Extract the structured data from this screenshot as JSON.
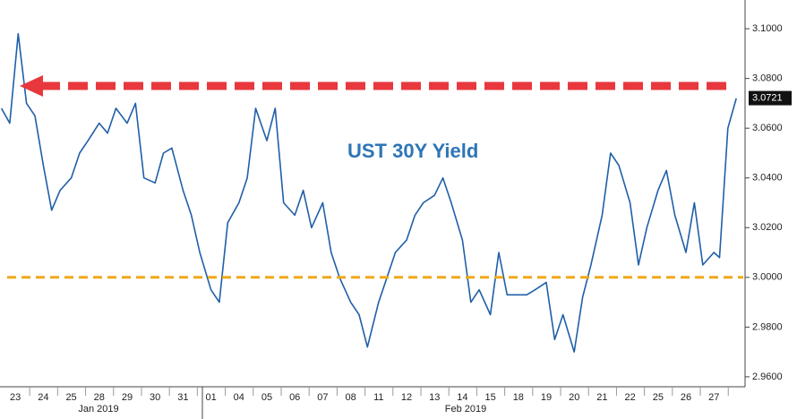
{
  "chart_data": {
    "type": "line",
    "annotation": "UST 30Y Yield",
    "color": "#1f5fa8",
    "x": [
      -0.5,
      -0.2,
      0.1,
      0.4,
      0.7,
      1.0,
      1.3,
      1.6,
      2.0,
      2.3,
      2.6,
      3.0,
      3.3,
      3.6,
      4.0,
      4.3,
      4.6,
      5.0,
      5.3,
      5.6,
      6.0,
      6.3,
      6.6,
      7.0,
      7.3,
      7.6,
      8.0,
      8.3,
      8.6,
      9.0,
      9.3,
      9.6,
      10.0,
      10.3,
      10.6,
      11.0,
      11.3,
      11.6,
      12.0,
      12.3,
      12.6,
      13.0,
      13.3,
      13.6,
      14.0,
      14.3,
      14.6,
      15.0,
      15.3,
      15.6,
      16.0,
      16.3,
      16.6,
      17.0,
      17.3,
      17.6,
      18.0,
      18.3,
      18.6,
      19.0,
      19.3,
      19.6,
      20.0,
      20.3,
      20.6,
      21.0,
      21.3,
      21.6,
      22.0,
      22.3,
      22.6,
      23.0,
      23.3,
      23.6,
      24.0,
      24.3,
      24.6,
      25.0,
      25.2,
      25.5,
      25.8
    ],
    "values": [
      3.068,
      3.062,
      3.098,
      3.07,
      3.065,
      3.045,
      3.027,
      3.035,
      3.04,
      3.05,
      3.055,
      3.062,
      3.058,
      3.068,
      3.062,
      3.07,
      3.04,
      3.038,
      3.05,
      3.052,
      3.035,
      3.025,
      3.01,
      2.995,
      2.99,
      3.022,
      3.03,
      3.04,
      3.068,
      3.055,
      3.068,
      3.03,
      3.025,
      3.035,
      3.02,
      3.03,
      3.01,
      3.0,
      2.99,
      2.985,
      2.972,
      2.99,
      3.0,
      3.01,
      3.015,
      3.025,
      3.03,
      3.033,
      3.04,
      3.03,
      3.015,
      2.99,
      2.995,
      2.985,
      3.01,
      2.993,
      2.993,
      2.993,
      2.995,
      2.998,
      2.975,
      2.985,
      2.97,
      2.992,
      3.005,
      3.025,
      3.05,
      3.045,
      3.03,
      3.005,
      3.02,
      3.035,
      3.043,
      3.025,
      3.01,
      3.03,
      3.005,
      3.01,
      3.008,
      3.06,
      3.072
    ],
    "xlim": [
      -0.55,
      26.05
    ],
    "xticks": [
      {
        "value": 0,
        "label": "23"
      },
      {
        "value": 1,
        "label": "24"
      },
      {
        "value": 2,
        "label": "25"
      },
      {
        "value": 3,
        "label": "28"
      },
      {
        "value": 4,
        "label": "29"
      },
      {
        "value": 5,
        "label": "30"
      },
      {
        "value": 6,
        "label": "31"
      },
      {
        "value": 7,
        "label": "01"
      },
      {
        "value": 8,
        "label": "04"
      },
      {
        "value": 9,
        "label": "05"
      },
      {
        "value": 10,
        "label": "06"
      },
      {
        "value": 11,
        "label": "07"
      },
      {
        "value": 12,
        "label": "08"
      },
      {
        "value": 13,
        "label": "11"
      },
      {
        "value": 14,
        "label": "12"
      },
      {
        "value": 15,
        "label": "13"
      },
      {
        "value": 16,
        "label": "14"
      },
      {
        "value": 17,
        "label": "15"
      },
      {
        "value": 18,
        "label": "18"
      },
      {
        "value": 19,
        "label": "19"
      },
      {
        "value": 20,
        "label": "20"
      },
      {
        "value": 21,
        "label": "21"
      },
      {
        "value": 22,
        "label": "22"
      },
      {
        "value": 23,
        "label": "25"
      },
      {
        "value": 24,
        "label": "26"
      },
      {
        "value": 25,
        "label": "27"
      }
    ],
    "x_groups": [
      "Jan 2019",
      "Feb 2019"
    ],
    "ylim": [
      2.956,
      3.104
    ],
    "yticks": [
      {
        "value": 3.1,
        "label": "3.1000"
      },
      {
        "value": 3.08,
        "label": "3.0800"
      },
      {
        "value": 3.06,
        "label": "3.0600"
      },
      {
        "value": 3.04,
        "label": "3.0400"
      },
      {
        "value": 3.02,
        "label": "3.0200"
      },
      {
        "value": 3.0,
        "label": "3.0000"
      },
      {
        "value": 2.98,
        "label": "2.9800"
      },
      {
        "value": 2.96,
        "label": "2.9600"
      }
    ],
    "current_value": {
      "value": 3.0721,
      "label": "3.0721"
    },
    "reference_lines": [
      {
        "value": 3.077,
        "color": "#e8383d"
      },
      {
        "value": 3.0,
        "color": "#f0a818"
      }
    ]
  }
}
